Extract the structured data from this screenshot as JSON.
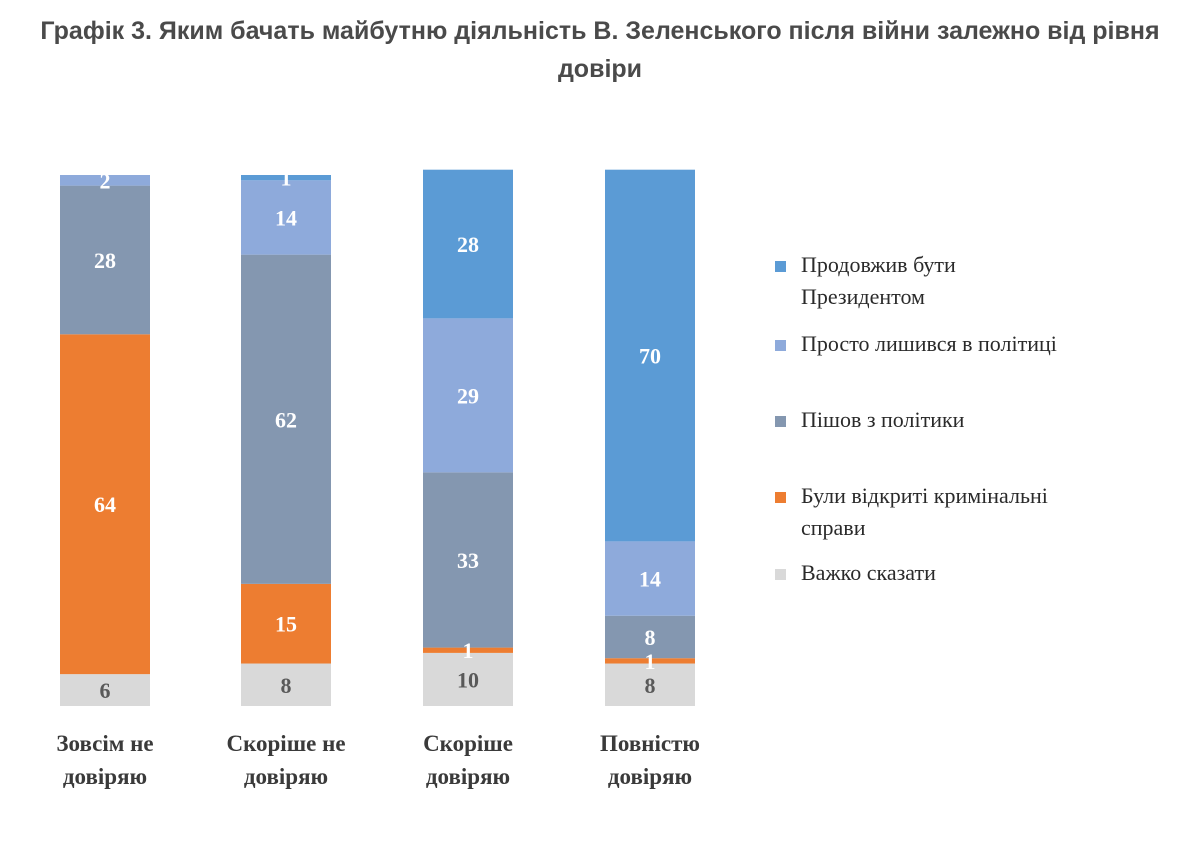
{
  "chart_data": {
    "type": "bar",
    "stacked": true,
    "percent": true,
    "title": "Графік 3. Яким бачать майбутню діяльність В. Зеленського після війни залежно від рівня довіри",
    "categories": [
      [
        "Зовсім не",
        "довіряю"
      ],
      [
        "Скоріше не",
        "довіряю"
      ],
      [
        "Скоріше",
        "довіряю"
      ],
      [
        "Повністю",
        "довіряю"
      ]
    ],
    "series": [
      {
        "name": [
          "Продовжив бути",
          "Президентом"
        ],
        "color": "#5b9bd5",
        "label_color": "#ffffff",
        "values": [
          0,
          1,
          28,
          70
        ]
      },
      {
        "name": [
          "Просто лишився в політиці"
        ],
        "color": "#8eaadb",
        "label_color": "#ffffff",
        "values": [
          2,
          14,
          29,
          14
        ]
      },
      {
        "name": [
          "Пішов з політики"
        ],
        "color": "#8497b0",
        "label_color": "#ffffff",
        "values": [
          28,
          62,
          33,
          8
        ]
      },
      {
        "name": [
          "Були відкриті кримінальні",
          "справи"
        ],
        "color": "#ed7d31",
        "label_color": "#ffffff",
        "values": [
          64,
          15,
          1,
          1
        ]
      },
      {
        "name": [
          "Важко сказати"
        ],
        "color": "#d9d9d9",
        "label_color": "#595959",
        "values": [
          6,
          8,
          10,
          8
        ]
      }
    ],
    "ylim": [
      0,
      100
    ],
    "legend": "right"
  }
}
